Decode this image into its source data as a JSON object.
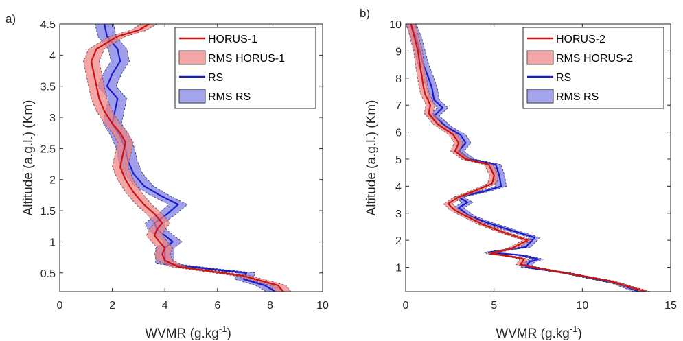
{
  "chart_data": [
    {
      "type": "line",
      "panel_label": "a)",
      "xlabel": "WVMR (g.kg",
      "xlabel_sup": "-1",
      "xlabel_end": ")",
      "ylabel": "Altitude (a.g.l.) (Km)",
      "xlim": [
        0,
        10
      ],
      "ylim": [
        0.2,
        4.5
      ],
      "xticks": [
        "0",
        "2",
        "4",
        "6",
        "8",
        "10"
      ],
      "yticks": [
        "0.5",
        "1",
        "1.5",
        "2",
        "2.5",
        "3",
        "3.5",
        "4",
        "4.5"
      ],
      "grid": false,
      "legend_position": "top-right",
      "legend": [
        "HORUS-1",
        "RMS HORUS-1",
        "RS",
        "RMS RS"
      ],
      "colors": {
        "horus": "#cc1111",
        "horus_dark": "#8b0000",
        "horus_band": "#f08080",
        "rs": "#1a1acc",
        "rs_band": "#7f7fe6"
      },
      "series": [
        {
          "name": "HORUS-1",
          "rms": 0.3,
          "points": [
            [
              8.5,
              0.2
            ],
            [
              8.3,
              0.3
            ],
            [
              7.0,
              0.45
            ],
            [
              4.5,
              0.6
            ],
            [
              4.0,
              0.7
            ],
            [
              3.9,
              0.8
            ],
            [
              4.0,
              0.9
            ],
            [
              3.8,
              1.0
            ],
            [
              3.6,
              1.1
            ],
            [
              3.7,
              1.2
            ],
            [
              3.9,
              1.3
            ],
            [
              3.6,
              1.45
            ],
            [
              3.2,
              1.6
            ],
            [
              2.8,
              1.8
            ],
            [
              2.5,
              2.0
            ],
            [
              2.3,
              2.2
            ],
            [
              2.4,
              2.4
            ],
            [
              2.5,
              2.6
            ],
            [
              2.3,
              2.75
            ],
            [
              2.0,
              2.9
            ],
            [
              1.7,
              3.1
            ],
            [
              1.5,
              3.3
            ],
            [
              1.4,
              3.5
            ],
            [
              1.3,
              3.7
            ],
            [
              1.2,
              3.9
            ],
            [
              1.4,
              4.1
            ],
            [
              2.2,
              4.3
            ],
            [
              3.0,
              4.4
            ],
            [
              3.4,
              4.5
            ]
          ]
        },
        {
          "name": "RS",
          "rms": 0.35,
          "points": [
            [
              8.2,
              0.2
            ],
            [
              7.8,
              0.3
            ],
            [
              7.0,
              0.4
            ],
            [
              7.1,
              0.5
            ],
            [
              6.0,
              0.55
            ],
            [
              4.0,
              0.65
            ],
            [
              4.0,
              0.8
            ],
            [
              4.0,
              0.9
            ],
            [
              4.3,
              1.0
            ],
            [
              4.0,
              1.1
            ],
            [
              3.7,
              1.2
            ],
            [
              3.6,
              1.3
            ],
            [
              4.1,
              1.45
            ],
            [
              4.5,
              1.6
            ],
            [
              3.8,
              1.75
            ],
            [
              3.2,
              1.9
            ],
            [
              2.8,
              2.1
            ],
            [
              2.6,
              2.3
            ],
            [
              2.5,
              2.5
            ],
            [
              2.3,
              2.7
            ],
            [
              2.0,
              2.9
            ],
            [
              2.1,
              3.1
            ],
            [
              2.2,
              3.3
            ],
            [
              1.8,
              3.5
            ],
            [
              2.0,
              3.7
            ],
            [
              2.3,
              3.9
            ],
            [
              2.2,
              4.1
            ],
            [
              1.8,
              4.3
            ],
            [
              1.7,
              4.5
            ]
          ]
        }
      ]
    },
    {
      "type": "line",
      "panel_label": "b)",
      "xlabel": "WVMR (g.kg",
      "xlabel_sup": "-1",
      "xlabel_end": ")",
      "ylabel": "Altitude (a.g.l.) (Km)",
      "xlim": [
        0,
        15
      ],
      "ylim": [
        0.1,
        10
      ],
      "xticks": [
        "0",
        "5",
        "10",
        "15"
      ],
      "yticks": [
        "1",
        "2",
        "3",
        "4",
        "5",
        "6",
        "7",
        "8",
        "9",
        "10"
      ],
      "grid": false,
      "legend_position": "top-right",
      "legend": [
        "HORUS-2",
        "RMS HORUS-2",
        "RS",
        "RMS RS"
      ],
      "colors": {
        "horus": "#cc1111",
        "horus_dark": "#8b0000",
        "horus_band": "#f08080",
        "rs": "#1a1acc",
        "rs_band": "#7f7fe6"
      },
      "series": [
        {
          "name": "HORUS-2",
          "rms": 0.25,
          "points": [
            [
              13.6,
              0.1
            ],
            [
              11.5,
              0.5
            ],
            [
              8.5,
              0.85
            ],
            [
              6.5,
              1.1
            ],
            [
              6.7,
              1.3
            ],
            [
              6.0,
              1.4
            ],
            [
              4.8,
              1.5
            ],
            [
              6.0,
              1.7
            ],
            [
              6.9,
              2.0
            ],
            [
              5.5,
              2.3
            ],
            [
              4.3,
              2.6
            ],
            [
              3.4,
              2.9
            ],
            [
              2.8,
              3.1
            ],
            [
              2.4,
              3.35
            ],
            [
              3.0,
              3.6
            ],
            [
              4.0,
              3.85
            ],
            [
              4.9,
              4.1
            ],
            [
              5.0,
              4.4
            ],
            [
              4.7,
              4.8
            ],
            [
              3.4,
              5.0
            ],
            [
              2.8,
              5.3
            ],
            [
              3.0,
              5.6
            ],
            [
              2.7,
              5.9
            ],
            [
              1.8,
              6.3
            ],
            [
              1.3,
              6.7
            ],
            [
              1.4,
              7.0
            ],
            [
              1.1,
              7.4
            ],
            [
              1.0,
              7.7
            ],
            [
              0.9,
              8.1
            ],
            [
              0.8,
              8.5
            ],
            [
              0.7,
              9.0
            ],
            [
              0.5,
              9.5
            ],
            [
              0.3,
              10.0
            ]
          ]
        },
        {
          "name": "RS",
          "rms": 0.3,
          "points": [
            [
              13.2,
              0.1
            ],
            [
              12.0,
              0.4
            ],
            [
              9.0,
              0.8
            ],
            [
              6.8,
              1.0
            ],
            [
              7.0,
              1.2
            ],
            [
              7.5,
              1.3
            ],
            [
              6.5,
              1.45
            ],
            [
              4.7,
              1.55
            ],
            [
              6.8,
              1.75
            ],
            [
              7.3,
              2.1
            ],
            [
              5.8,
              2.4
            ],
            [
              4.6,
              2.65
            ],
            [
              3.6,
              2.9
            ],
            [
              3.0,
              3.2
            ],
            [
              3.5,
              3.4
            ],
            [
              3.0,
              3.6
            ],
            [
              4.4,
              3.8
            ],
            [
              5.4,
              4.0
            ],
            [
              5.3,
              4.4
            ],
            [
              5.1,
              4.8
            ],
            [
              3.6,
              5.0
            ],
            [
              3.0,
              5.3
            ],
            [
              3.4,
              5.6
            ],
            [
              3.1,
              5.9
            ],
            [
              2.3,
              6.2
            ],
            [
              1.6,
              6.6
            ],
            [
              2.1,
              6.9
            ],
            [
              1.6,
              7.2
            ],
            [
              1.5,
              7.6
            ],
            [
              1.3,
              8.0
            ],
            [
              1.0,
              8.5
            ],
            [
              0.8,
              9.0
            ],
            [
              0.6,
              9.5
            ],
            [
              0.3,
              10.0
            ]
          ]
        }
      ]
    }
  ]
}
